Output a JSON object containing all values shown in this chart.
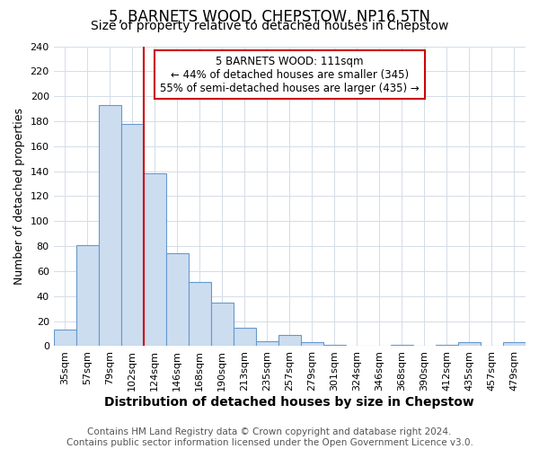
{
  "title": "5, BARNETS WOOD, CHEPSTOW, NP16 5TN",
  "subtitle": "Size of property relative to detached houses in Chepstow",
  "xlabel": "Distribution of detached houses by size in Chepstow",
  "ylabel": "Number of detached properties",
  "footer_line1": "Contains HM Land Registry data © Crown copyright and database right 2024.",
  "footer_line2": "Contains public sector information licensed under the Open Government Licence v3.0.",
  "categories": [
    "35sqm",
    "57sqm",
    "79sqm",
    "102sqm",
    "124sqm",
    "146sqm",
    "168sqm",
    "190sqm",
    "213sqm",
    "235sqm",
    "257sqm",
    "279sqm",
    "301sqm",
    "324sqm",
    "346sqm",
    "368sqm",
    "390sqm",
    "412sqm",
    "435sqm",
    "457sqm",
    "479sqm"
  ],
  "values": [
    13,
    81,
    193,
    178,
    138,
    74,
    51,
    35,
    15,
    4,
    9,
    3,
    1,
    0,
    0,
    1,
    0,
    1,
    3,
    0,
    3
  ],
  "bar_color": "#ccddf0",
  "bar_edge_color": "#6699cc",
  "grid_color": "#d4dce8",
  "annotation_text": "5 BARNETS WOOD: 111sqm\n← 44% of detached houses are smaller (345)\n55% of semi-detached houses are larger (435) →",
  "annotation_box_color": "#cc0000",
  "vline_color": "#cc0000",
  "ylim": [
    0,
    240
  ],
  "yticks": [
    0,
    20,
    40,
    60,
    80,
    100,
    120,
    140,
    160,
    180,
    200,
    220,
    240
  ],
  "title_fontsize": 12,
  "subtitle_fontsize": 10,
  "xlabel_fontsize": 10,
  "ylabel_fontsize": 9,
  "tick_fontsize": 8,
  "annotation_fontsize": 8.5,
  "footer_fontsize": 7.5
}
